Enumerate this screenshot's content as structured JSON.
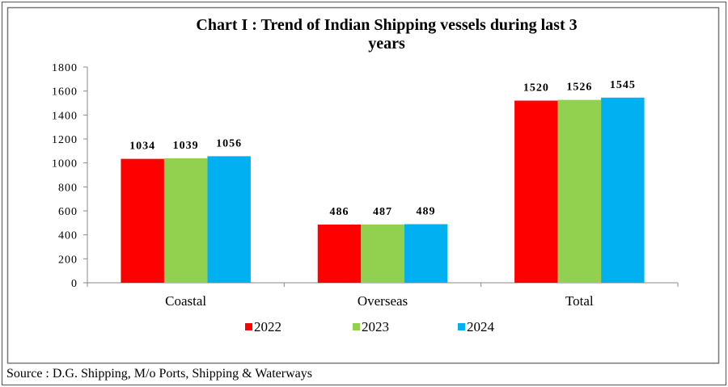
{
  "chart_data": {
    "type": "bar",
    "title": "Chart I : Trend of Indian Shipping vessels during last 3 years",
    "title_lines": [
      "Chart I : Trend of Indian Shipping vessels during last 3",
      "years"
    ],
    "categories": [
      "Coastal",
      "Overseas",
      "Total"
    ],
    "series": [
      {
        "name": "2022",
        "values": [
          1034,
          486,
          1520
        ],
        "color": "#ff0000"
      },
      {
        "name": "2023",
        "values": [
          1039,
          487,
          1526
        ],
        "color": "#92d050"
      },
      {
        "name": "2024",
        "values": [
          1056,
          489,
          1545
        ],
        "color": "#00b0f0"
      }
    ],
    "ylim": [
      0,
      1800
    ],
    "yticks": [
      0,
      200,
      400,
      600,
      800,
      1000,
      1200,
      1400,
      1600,
      1800
    ],
    "grid": false,
    "legend": "bottom",
    "xlabel": "",
    "ylabel": ""
  },
  "source": "Source : D.G. Shipping, M/o Ports, Shipping & Waterways"
}
